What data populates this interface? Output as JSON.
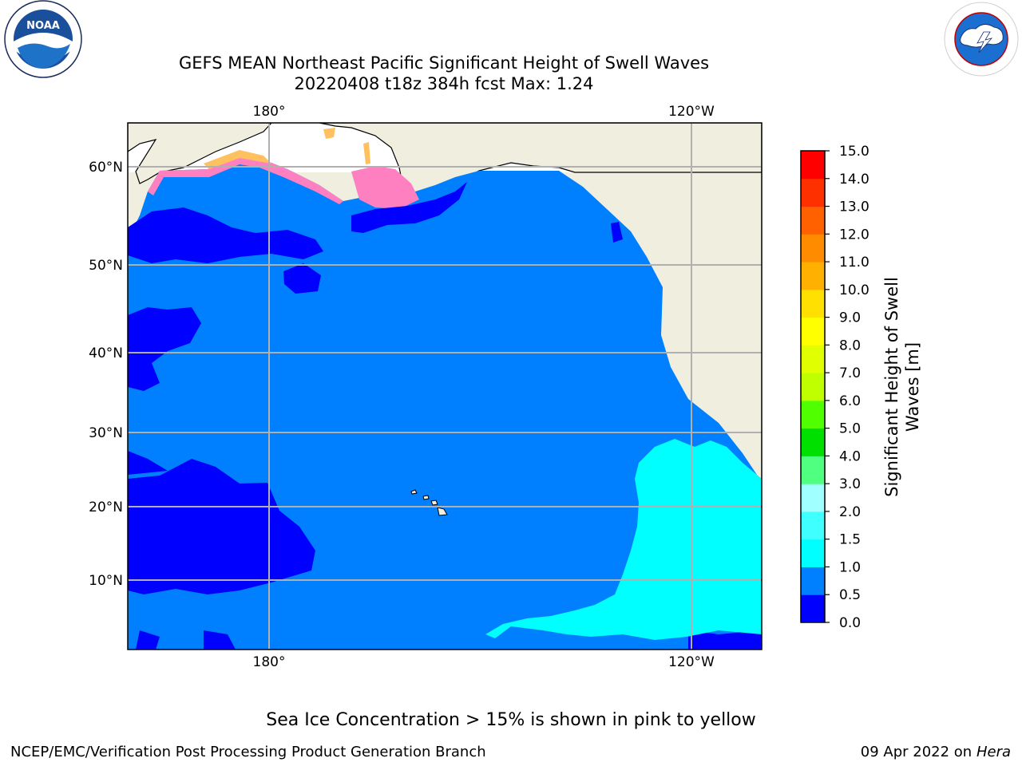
{
  "title": {
    "line1": "GEFS MEAN Northeast Pacific Significant Height of Swell Waves",
    "line2": "20220408 t18z 384h fcst   Max: 1.24"
  },
  "logos": {
    "noaa_text": "NOAA",
    "noaa_ring": "NATIONAL OCEANIC AND ATMOSPHERIC ADMINISTRATION · U.S. DEPARTMENT OF COMMERCE",
    "nws_ring": "NATIONAL WEATHER SERVICE"
  },
  "map": {
    "lon_labels_top": [
      "180°",
      "120°W"
    ],
    "lon_labels_bottom": [
      "180°",
      "120°W"
    ],
    "lat_labels": [
      "60°N",
      "50°N",
      "40°N",
      "30°N",
      "20°N",
      "10°N"
    ],
    "colors": {
      "land": "#efeedf",
      "ocean_mid": "#0080ff",
      "ocean_low": "#0000ff",
      "ocean_high": "#00ffff",
      "ice": "#ff80c0",
      "ice_edge": "#ffc060",
      "grid": "#b0b0b0"
    }
  },
  "colorbar": {
    "label_line1": "Significant Height of Swell",
    "label_line2": "Waves [m]",
    "ticks": [
      "0.0",
      "0.5",
      "1.0",
      "1.5",
      "2.0",
      "3.0",
      "4.0",
      "5.0",
      "6.0",
      "7.0",
      "8.0",
      "9.0",
      "10.0",
      "11.0",
      "12.0",
      "13.0",
      "14.0",
      "15.0"
    ],
    "colors": [
      "#0000ff",
      "#0080ff",
      "#00ffff",
      "#40ffff",
      "#a0ffff",
      "#50ff80",
      "#00e000",
      "#50ff00",
      "#c0ff00",
      "#e0ff00",
      "#ffff00",
      "#ffe000",
      "#ffb000",
      "#ff8c00",
      "#ff6000",
      "#ff3000",
      "#ff0000"
    ]
  },
  "note": "Sea Ice Concentration > 15% is shown in pink to yellow",
  "footer": {
    "left": "NCEP/EMC/Verification Post Processing Product Generation Branch",
    "right_date": "09 Apr 2022 on ",
    "right_host": "Hera"
  }
}
